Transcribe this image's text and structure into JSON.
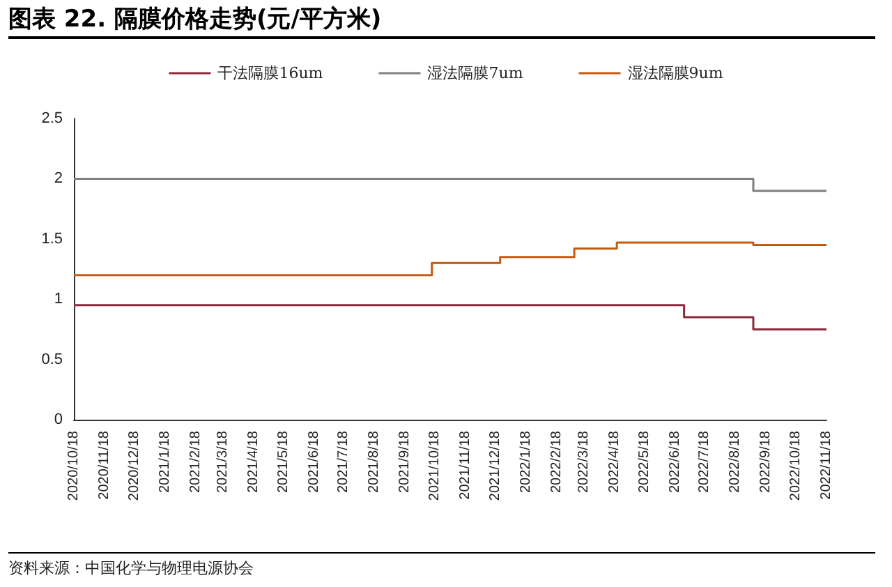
{
  "chart_data": {
    "type": "step",
    "title": "图表 22. 隔膜价格走势(元/平方米)",
    "annotations": [
      "资料来源：中国化学与物理电源协会"
    ],
    "series": [
      {
        "name": "干法隔膜16um",
        "color": "#8b2a3a",
        "x": [
          "2020-10-18",
          "2022-06-27",
          "2022-09-05",
          "2022-11-18"
        ],
        "values": [
          0.95,
          0.85,
          0.75,
          0.75
        ]
      },
      {
        "name": "湿法隔膜7um",
        "color": "#808080",
        "x": [
          "2020-10-18",
          "2022-09-05",
          "2022-11-18"
        ],
        "values": [
          2.0,
          1.9,
          1.9
        ]
      },
      {
        "name": "湿法隔膜9um",
        "color": "#c55a11",
        "x": [
          "2020-10-18",
          "2021-10-15",
          "2021-12-23",
          "2022-03-08",
          "2022-04-20",
          "2022-09-05",
          "2022-11-18"
        ],
        "values": [
          1.2,
          1.3,
          1.35,
          1.42,
          1.47,
          1.45,
          1.45
        ]
      }
    ],
    "xlim": [
      "2020-10-18",
      "2022-11-18"
    ],
    "xticks": [
      {
        "value": "2020-10-18",
        "label": "2020/10/18"
      },
      {
        "value": "2020-11-18",
        "label": "2020/11/18"
      },
      {
        "value": "2020-12-18",
        "label": "2020/12/18"
      },
      {
        "value": "2021-01-18",
        "label": "2021/1/18"
      },
      {
        "value": "2021-02-18",
        "label": "2021/2/18"
      },
      {
        "value": "2021-03-18",
        "label": "2021/3/18"
      },
      {
        "value": "2021-04-18",
        "label": "2021/4/18"
      },
      {
        "value": "2021-05-18",
        "label": "2021/5/18"
      },
      {
        "value": "2021-06-18",
        "label": "2021/6/18"
      },
      {
        "value": "2021-07-18",
        "label": "2021/7/18"
      },
      {
        "value": "2021-08-18",
        "label": "2021/8/18"
      },
      {
        "value": "2021-09-18",
        "label": "2021/9/18"
      },
      {
        "value": "2021-10-18",
        "label": "2021/10/18"
      },
      {
        "value": "2021-11-18",
        "label": "2021/11/18"
      },
      {
        "value": "2021-12-18",
        "label": "2021/12/18"
      },
      {
        "value": "2022-01-18",
        "label": "2022/1/18"
      },
      {
        "value": "2022-02-18",
        "label": "2022/2/18"
      },
      {
        "value": "2022-03-18",
        "label": "2022/3/18"
      },
      {
        "value": "2022-04-18",
        "label": "2022/4/18"
      },
      {
        "value": "2022-05-18",
        "label": "2022/5/18"
      },
      {
        "value": "2022-06-18",
        "label": "2022/6/18"
      },
      {
        "value": "2022-07-18",
        "label": "2022/7/18"
      },
      {
        "value": "2022-08-18",
        "label": "2022/8/18"
      },
      {
        "value": "2022-09-18",
        "label": "2022/9/18"
      },
      {
        "value": "2022-10-18",
        "label": "2022/10/18"
      },
      {
        "value": "2022-11-18",
        "label": "2022/11/18"
      }
    ],
    "ylim": [
      0,
      2.5
    ],
    "yticks": [
      0,
      0.5,
      1,
      1.5,
      2,
      2.5
    ],
    "grid": false,
    "legend": "top",
    "marker": "none",
    "line_style": "solid"
  }
}
